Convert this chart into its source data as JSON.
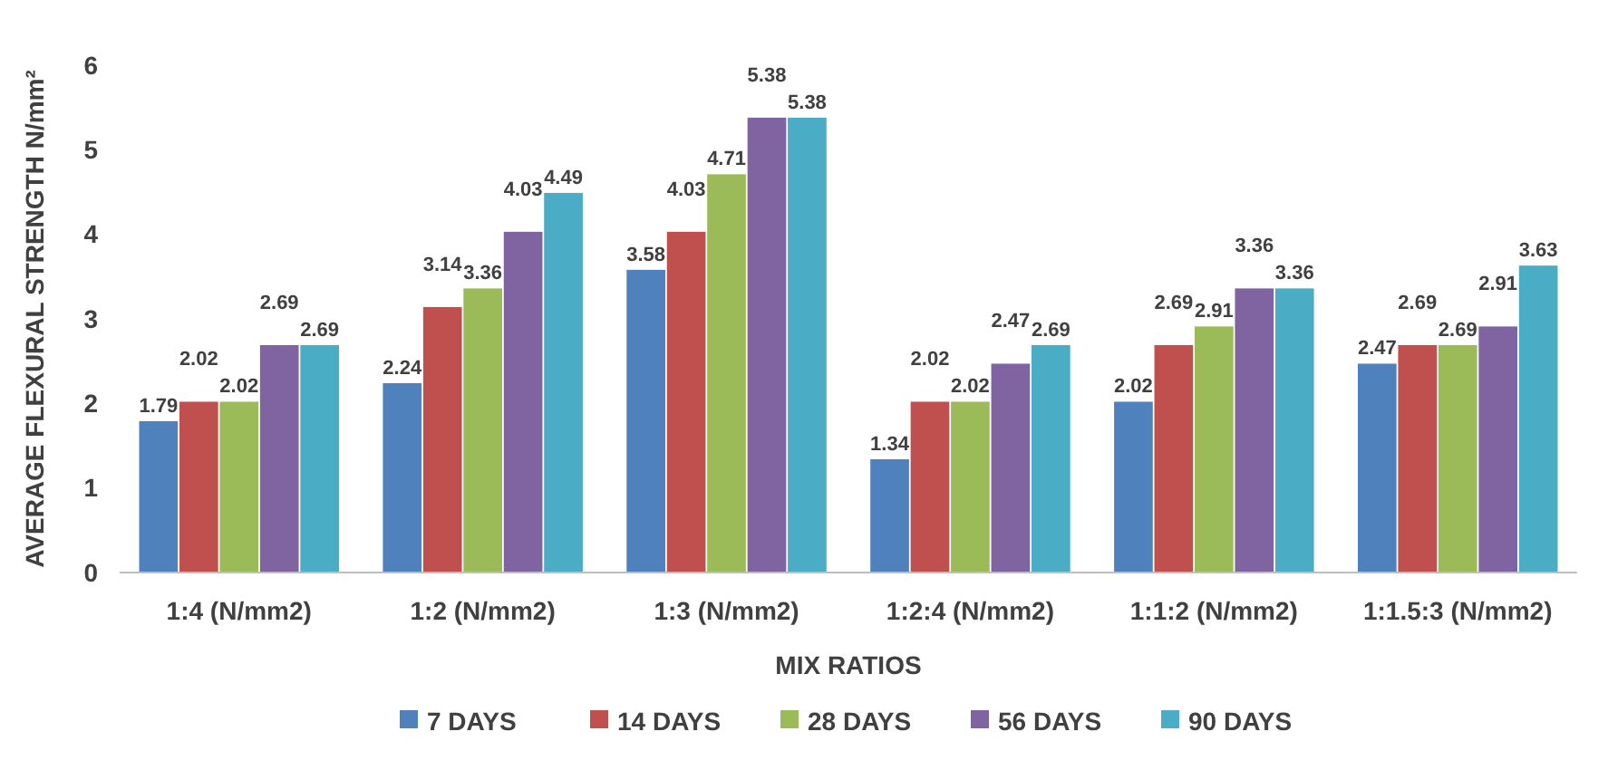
{
  "chart_data": {
    "type": "bar",
    "xlabel": "MIX RATIOS",
    "ylabel": "AVERAGE FLEXURAL STRENGTH N/mm²",
    "categories": [
      "1:4 (N/mm2)",
      "1:2 (N/mm2)",
      "1:3 (N/mm2)",
      "1:2:4 (N/mm2)",
      "1:1:2 (N/mm2)",
      "1:1.5:3 (N/mm2)"
    ],
    "series": [
      {
        "name": "7 DAYS",
        "color": "#4f81bd",
        "values": [
          1.79,
          2.24,
          3.58,
          1.34,
          2.02,
          2.47
        ]
      },
      {
        "name": "14 DAYS",
        "color": "#c0504d",
        "values": [
          2.02,
          3.14,
          4.03,
          2.02,
          2.69,
          2.69
        ]
      },
      {
        "name": "28 DAYS",
        "color": "#9bbb59",
        "values": [
          2.02,
          3.36,
          4.71,
          2.02,
          2.91,
          2.69
        ]
      },
      {
        "name": "56 DAYS",
        "color": "#8064a2",
        "values": [
          2.69,
          4.03,
          5.38,
          2.47,
          3.36,
          2.91
        ]
      },
      {
        "name": "90 DAYS",
        "color": "#4bacc6",
        "values": [
          2.69,
          4.49,
          5.38,
          2.69,
          3.36,
          3.63
        ]
      }
    ],
    "ylim": [
      0,
      6
    ],
    "yticks": [
      0,
      1,
      2,
      3,
      4,
      5,
      6
    ],
    "data_labels": true,
    "legend": "bottom",
    "grid": false
  }
}
